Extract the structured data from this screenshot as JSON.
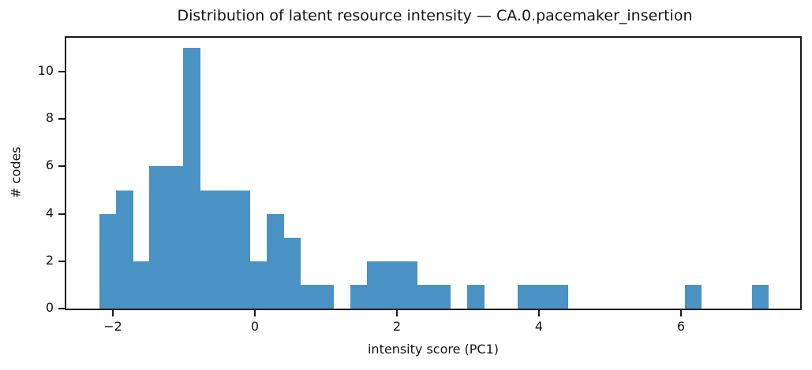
{
  "chart_data": {
    "type": "bar",
    "subtype": "histogram",
    "title": "Distribution of latent resource intensity — CA.0.pacemaker_insertion",
    "xlabel": "intensity score (PC1)",
    "ylabel": "# codes",
    "bin_start": -2.19,
    "bin_width": 0.2355,
    "counts": [
      4,
      5,
      2,
      6,
      6,
      11,
      5,
      5,
      5,
      2,
      4,
      3,
      1,
      1,
      0,
      1,
      2,
      2,
      2,
      1,
      1,
      0,
      1,
      0,
      0,
      1,
      1,
      1,
      0,
      0,
      0,
      0,
      0,
      0,
      0,
      1,
      0,
      0,
      0,
      1
    ],
    "total_count": 75,
    "x_ticks": [
      {
        "value": -2,
        "label": "−2"
      },
      {
        "value": 0,
        "label": "0"
      },
      {
        "value": 2,
        "label": "2"
      },
      {
        "value": 4,
        "label": "4"
      },
      {
        "value": 6,
        "label": "6"
      }
    ],
    "y_ticks": [
      {
        "value": 0,
        "label": "0"
      },
      {
        "value": 2,
        "label": "2"
      },
      {
        "value": 4,
        "label": "4"
      },
      {
        "value": 6,
        "label": "6"
      },
      {
        "value": 8,
        "label": "8"
      },
      {
        "value": 10,
        "label": "10"
      }
    ],
    "xlim": [
      -2.6556,
      7.6778
    ],
    "ylim": [
      0,
      11.43
    ],
    "bar_color": "#4b92c4",
    "axis_color": "#1a1a1a",
    "grid": false,
    "legend": null
  }
}
